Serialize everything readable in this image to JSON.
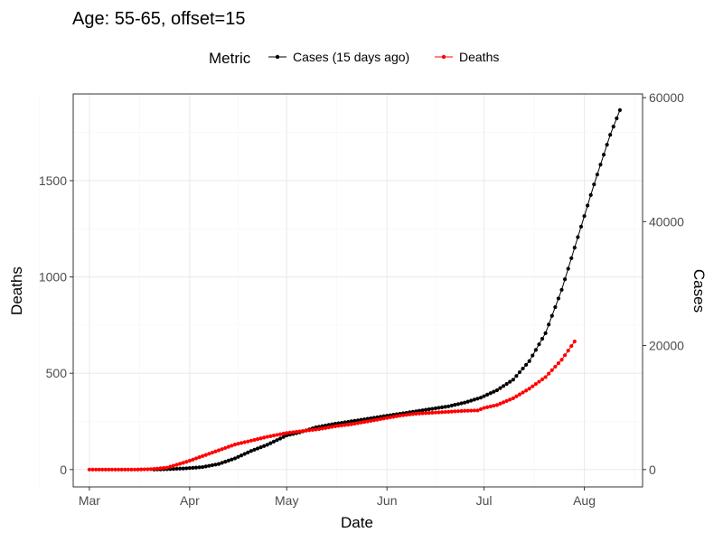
{
  "chart_data": {
    "type": "line",
    "title": "Age: 55-65, offset=15",
    "xlabel": "Date",
    "ylabel_left": "Deaths",
    "ylabel_right": "Cases",
    "x_ticks": [
      "Mar",
      "Apr",
      "May",
      "Jun",
      "Jul",
      "Aug"
    ],
    "x_tick_dates": [
      "2020-03-01",
      "2020-04-01",
      "2020-05-01",
      "2020-06-01",
      "2020-07-01",
      "2020-08-01"
    ],
    "xlim": [
      "2020-02-25",
      "2020-08-19"
    ],
    "y_left_ticks": [
      0,
      500,
      1000,
      1500
    ],
    "y_left_lim": [
      -90,
      1950
    ],
    "y_right_ticks": [
      0,
      20000,
      40000,
      60000
    ],
    "y_right_lim": [
      -2800,
      60600
    ],
    "grid": true,
    "legend": {
      "title": "Metric",
      "position": "top"
    },
    "series": [
      {
        "name": "Cases (15 days ago)",
        "axis": "right",
        "color": "#000000",
        "points": [
          [
            "2020-03-21",
            0
          ],
          [
            "2020-03-25",
            50
          ],
          [
            "2020-03-31",
            200
          ],
          [
            "2020-04-05",
            400
          ],
          [
            "2020-04-10",
            900
          ],
          [
            "2020-04-15",
            1800
          ],
          [
            "2020-04-20",
            3000
          ],
          [
            "2020-04-25",
            4000
          ],
          [
            "2020-05-01",
            5500
          ],
          [
            "2020-05-05",
            6000
          ],
          [
            "2020-05-10",
            6800
          ],
          [
            "2020-05-15",
            7300
          ],
          [
            "2020-05-20",
            7700
          ],
          [
            "2020-05-25",
            8100
          ],
          [
            "2020-05-31",
            8600
          ],
          [
            "2020-06-05",
            9000
          ],
          [
            "2020-06-10",
            9400
          ],
          [
            "2020-06-15",
            9800
          ],
          [
            "2020-06-20",
            10200
          ],
          [
            "2020-06-25",
            10800
          ],
          [
            "2020-06-30",
            11600
          ],
          [
            "2020-07-05",
            12800
          ],
          [
            "2020-07-10",
            14500
          ],
          [
            "2020-07-15",
            17500
          ],
          [
            "2020-07-20",
            22000
          ],
          [
            "2020-07-25",
            29000
          ],
          [
            "2020-07-30",
            37500
          ],
          [
            "2020-08-04",
            46000
          ],
          [
            "2020-08-09",
            54000
          ],
          [
            "2020-08-12",
            58000
          ]
        ]
      },
      {
        "name": "Deaths",
        "axis": "left",
        "color": "#ff0000",
        "points": [
          [
            "2020-03-01",
            0
          ],
          [
            "2020-03-05",
            0
          ],
          [
            "2020-03-10",
            0
          ],
          [
            "2020-03-15",
            0
          ],
          [
            "2020-03-20",
            2
          ],
          [
            "2020-03-25",
            10
          ],
          [
            "2020-03-31",
            40
          ],
          [
            "2020-04-05",
            70
          ],
          [
            "2020-04-10",
            100
          ],
          [
            "2020-04-15",
            130
          ],
          [
            "2020-04-20",
            150
          ],
          [
            "2020-04-25",
            170
          ],
          [
            "2020-05-01",
            190
          ],
          [
            "2020-05-06",
            200
          ],
          [
            "2020-05-11",
            210
          ],
          [
            "2020-05-16",
            225
          ],
          [
            "2020-05-21",
            235
          ],
          [
            "2020-05-26",
            250
          ],
          [
            "2020-05-31",
            265
          ],
          [
            "2020-06-05",
            280
          ],
          [
            "2020-06-10",
            290
          ],
          [
            "2020-06-15",
            295
          ],
          [
            "2020-06-20",
            300
          ],
          [
            "2020-06-25",
            305
          ],
          [
            "2020-06-29",
            307
          ],
          [
            "2020-07-01",
            320
          ],
          [
            "2020-07-05",
            335
          ],
          [
            "2020-07-10",
            370
          ],
          [
            "2020-07-15",
            420
          ],
          [
            "2020-07-20",
            480
          ],
          [
            "2020-07-25",
            570
          ],
          [
            "2020-07-29",
            665
          ]
        ]
      }
    ]
  }
}
